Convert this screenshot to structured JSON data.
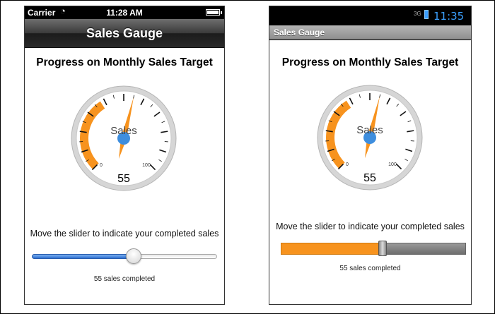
{
  "ios": {
    "status": {
      "carrier": "Carrier",
      "time": "11:28 AM"
    },
    "nav_title": "Sales Gauge",
    "heading": "Progress on Monthly Sales Target",
    "gauge": {
      "label": "Sales",
      "value_text": "55",
      "min_label": "0",
      "max_label": "100"
    },
    "instruction": "Move the slider to indicate your completed sales",
    "status_text": "55 sales completed"
  },
  "android": {
    "status": {
      "network": "3G",
      "time": "11:35"
    },
    "title": "Sales Gauge",
    "heading": "Progress on Monthly Sales Target",
    "gauge": {
      "label": "Sales",
      "value_text": "55",
      "min_label": "0",
      "max_label": "100"
    },
    "instruction": "Move the slider to indicate your completed sales",
    "status_text": "55 sales completed"
  },
  "gauge_value": 55,
  "gauge_max": 100,
  "slider_fraction": 0.55,
  "colors": {
    "accent": "#f7931e",
    "needle": "#f7931e",
    "hub": "#3e8ede",
    "ios_slider": "#2d6fd0"
  }
}
